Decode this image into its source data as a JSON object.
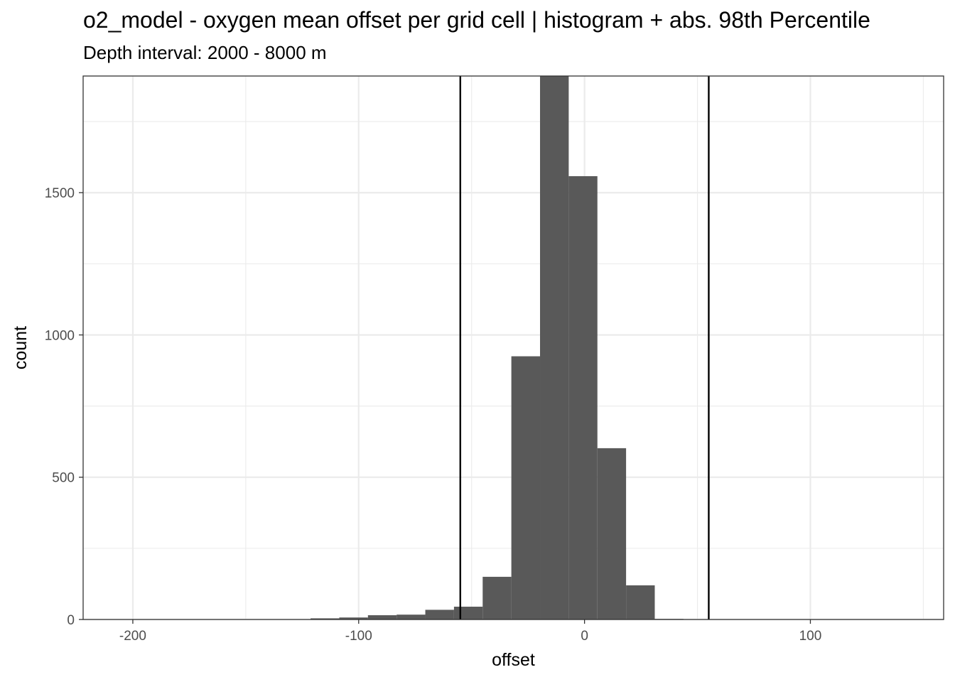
{
  "chart_data": {
    "type": "bar",
    "title": "o2_model  -  oxygen mean offset per grid cell | histogram + abs. 98th Percentile",
    "subtitle": "Depth interval: 2000 - 8000 m",
    "xlabel": "offset",
    "ylabel": "count",
    "xlim": [
      -222,
      159
    ],
    "ylim": [
      0,
      1910
    ],
    "x_ticks": [
      -200,
      -100,
      0,
      100
    ],
    "x_tick_labels": [
      "-200",
      "-100",
      "0",
      "100"
    ],
    "y_ticks": [
      0,
      500,
      1000,
      1500
    ],
    "y_tick_labels": [
      "0",
      "500",
      "1000",
      "1500"
    ],
    "x_minor_ticks": [
      -150,
      -50,
      50,
      150
    ],
    "y_minor_ticks": [
      250,
      750,
      1250,
      1750
    ],
    "grid": true,
    "bin_width": 12.7,
    "bins": [
      {
        "x0": -121.3,
        "x1": -108.6,
        "count": 4
      },
      {
        "x0": -108.6,
        "x1": -95.9,
        "count": 7
      },
      {
        "x0": -95.9,
        "x1": -83.2,
        "count": 15
      },
      {
        "x0": -83.2,
        "x1": -70.5,
        "count": 17
      },
      {
        "x0": -70.5,
        "x1": -57.8,
        "count": 34
      },
      {
        "x0": -57.8,
        "x1": -45.1,
        "count": 45
      },
      {
        "x0": -45.1,
        "x1": -32.4,
        "count": 150
      },
      {
        "x0": -32.4,
        "x1": -19.7,
        "count": 925
      },
      {
        "x0": -19.7,
        "x1": -7.0,
        "count": 1910
      },
      {
        "x0": -7.0,
        "x1": 5.7,
        "count": 1558
      },
      {
        "x0": 5.7,
        "x1": 18.4,
        "count": 602
      },
      {
        "x0": 18.4,
        "x1": 31.1,
        "count": 120
      },
      {
        "x0": 31.1,
        "x1": 43.8,
        "count": 2
      }
    ],
    "percentile_lines": [
      -55,
      55
    ],
    "bar_color": "#595959",
    "line_color": "#000000"
  }
}
